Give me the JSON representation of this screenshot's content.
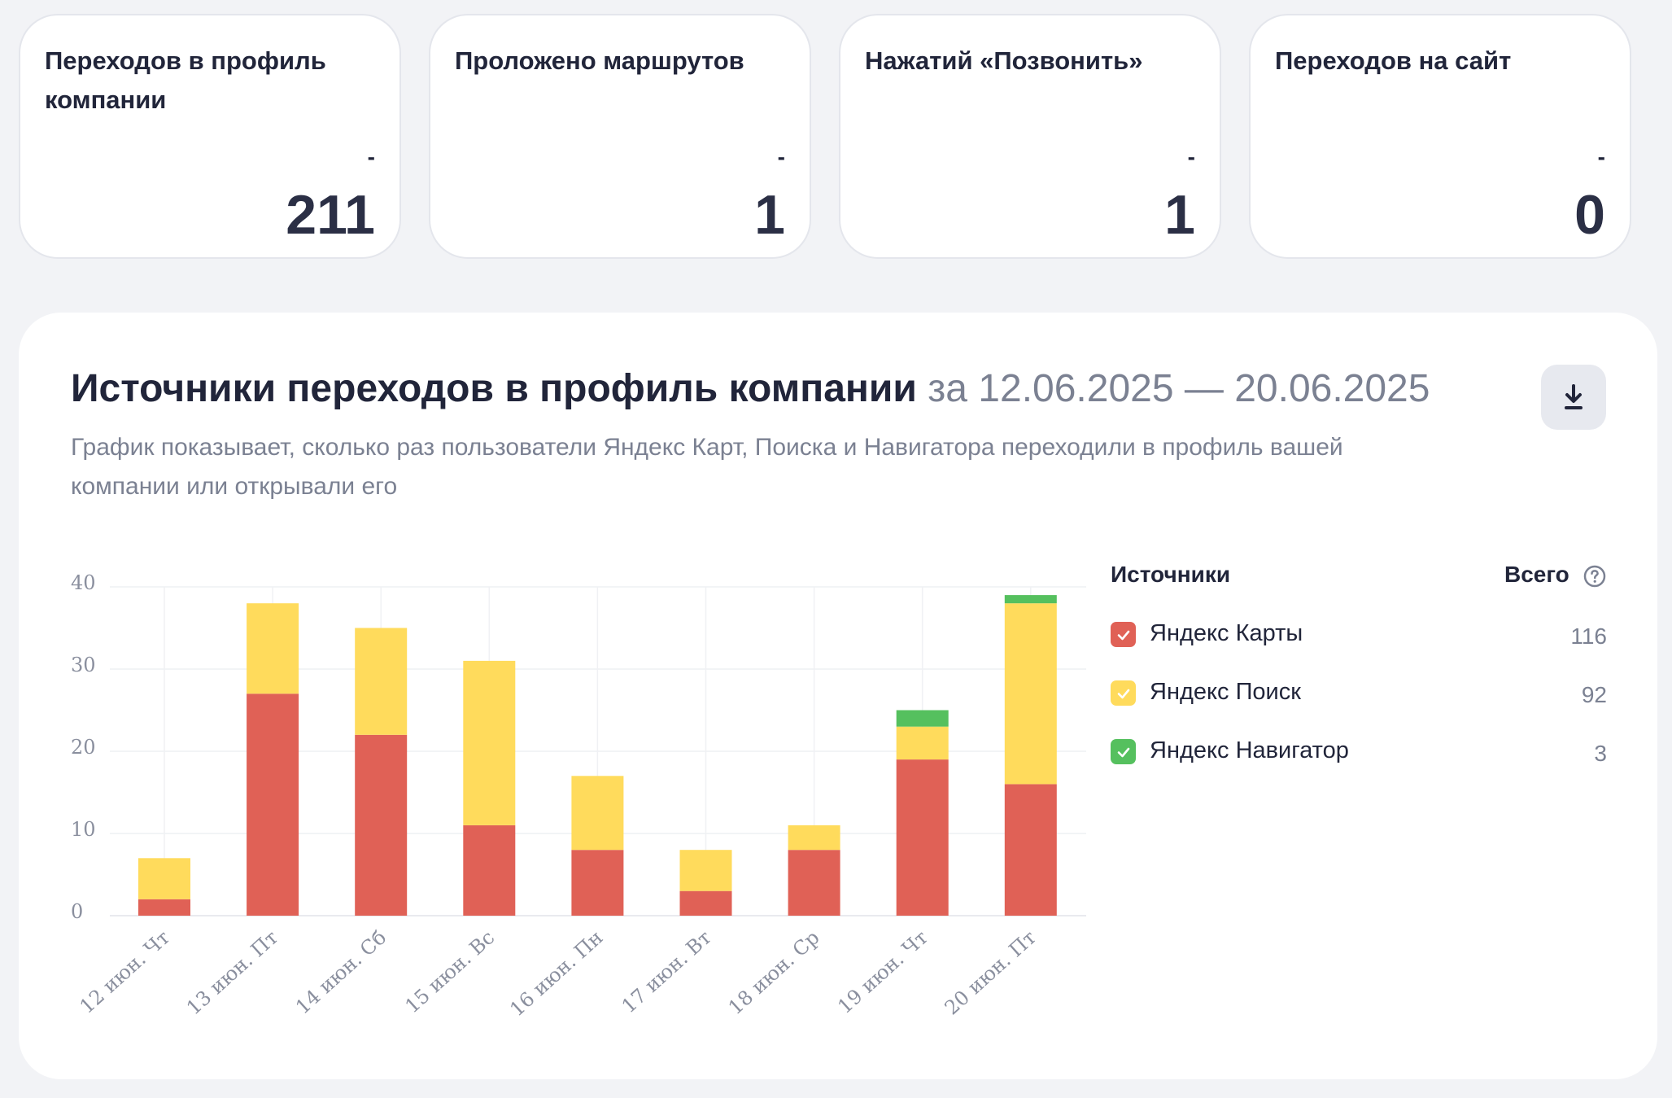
{
  "cards": [
    {
      "title": "Переходов в профиль компании",
      "delta": "-",
      "value": "211"
    },
    {
      "title": "Проложено маршрутов",
      "delta": "-",
      "value": "1"
    },
    {
      "title": "Нажатий «Позвонить»",
      "delta": "-",
      "value": "1"
    },
    {
      "title": "Переходов на сайт",
      "delta": "-",
      "value": "0"
    }
  ],
  "panel": {
    "title": "Источники переходов в профиль компании",
    "range": "за 12.06.2025 — 20.06.2025",
    "description": "График показывает, сколько раз пользователи Яндекс Карт, Поиска и Навигатора переходили в профиль вашей компании или открывали его",
    "download_icon": "download-icon"
  },
  "legend": {
    "header_sources": "Источники",
    "header_total": "Всего",
    "help_icon": "question-circle-icon",
    "items": [
      {
        "label": "Яндекс Карты",
        "total": "116",
        "color": "#e06156"
      },
      {
        "label": "Яндекс Поиск",
        "total": "92",
        "color": "#ffdb5c"
      },
      {
        "label": "Яндекс Навигатор",
        "total": "3",
        "color": "#55c05e"
      }
    ]
  },
  "chart_data": {
    "type": "bar",
    "stacked": true,
    "categories": [
      "12 июн. Чт",
      "13 июн. Пт",
      "14 июн. Сб",
      "15 июн. Вс",
      "16 июн. Пн",
      "17 июн. Вт",
      "18 июн. Ср",
      "19 июн. Чт",
      "20 июн. Пт"
    ],
    "series": [
      {
        "name": "Яндекс Карты",
        "color": "#e06156",
        "values": [
          2,
          27,
          22,
          11,
          8,
          3,
          8,
          19,
          16
        ]
      },
      {
        "name": "Яндекс Поиск",
        "color": "#ffdb5c",
        "values": [
          5,
          11,
          13,
          20,
          9,
          5,
          3,
          4,
          22
        ]
      },
      {
        "name": "Яндекс Навигатор",
        "color": "#55c05e",
        "values": [
          0,
          0,
          0,
          0,
          0,
          0,
          0,
          2,
          1
        ]
      }
    ],
    "yticks": [
      0,
      10,
      20,
      30,
      40
    ],
    "ylim": [
      0,
      40
    ],
    "grid": true
  }
}
